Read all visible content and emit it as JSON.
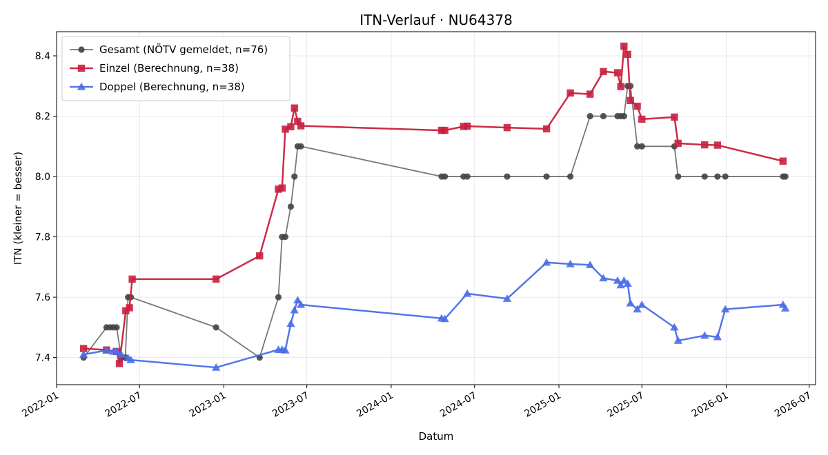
{
  "chart_data": {
    "type": "line",
    "title": "ITN-Verlauf · NU64378",
    "xlabel": "Datum",
    "ylabel": "ITN  (kleiner = besser)",
    "xlim": [
      "2022-01-01",
      "2026-07-15"
    ],
    "ylim": [
      7.31,
      8.48
    ],
    "x_ticks": [
      "2022-01",
      "2022-07",
      "2023-01",
      "2023-07",
      "2024-01",
      "2024-07",
      "2025-01",
      "2025-07",
      "2026-01",
      "2026-07"
    ],
    "y_ticks": [
      7.4,
      7.6,
      7.8,
      8.0,
      8.2,
      8.4
    ],
    "y_tick_labels": [
      "7.4",
      "7.6",
      "7.8",
      "8.0",
      "8.2",
      "8.4"
    ],
    "grid": true,
    "legend_position": "top-left",
    "series": [
      {
        "name": "Gesamt (NÖTV gemeldet, n=76)",
        "color": "#444444",
        "marker": "circle",
        "points": [
          [
            "2022-03-01",
            7.4
          ],
          [
            "2022-04-20",
            7.5
          ],
          [
            "2022-04-28",
            7.5
          ],
          [
            "2022-05-05",
            7.5
          ],
          [
            "2022-05-12",
            7.5
          ],
          [
            "2022-05-22",
            7.4
          ],
          [
            "2022-05-31",
            7.4
          ],
          [
            "2022-06-06",
            7.6
          ],
          [
            "2022-06-12",
            7.6
          ],
          [
            "2022-12-15",
            7.5
          ],
          [
            "2023-03-20",
            7.4
          ],
          [
            "2023-04-30",
            7.6
          ],
          [
            "2023-05-08",
            7.8
          ],
          [
            "2023-05-15",
            7.8
          ],
          [
            "2023-05-27",
            7.9
          ],
          [
            "2023-06-04",
            8.0
          ],
          [
            "2023-06-11",
            8.1
          ],
          [
            "2023-06-18",
            8.1
          ],
          [
            "2024-04-20",
            8.0
          ],
          [
            "2024-04-27",
            8.0
          ],
          [
            "2024-06-07",
            8.0
          ],
          [
            "2024-06-15",
            8.0
          ],
          [
            "2024-09-10",
            8.0
          ],
          [
            "2024-12-05",
            8.0
          ],
          [
            "2025-01-26",
            8.0
          ],
          [
            "2025-03-10",
            8.2
          ],
          [
            "2025-04-08",
            8.2
          ],
          [
            "2025-05-09",
            8.2
          ],
          [
            "2025-05-16",
            8.2
          ],
          [
            "2025-05-23",
            8.2
          ],
          [
            "2025-05-31",
            8.3
          ],
          [
            "2025-06-06",
            8.3
          ],
          [
            "2025-06-21",
            8.1
          ],
          [
            "2025-07-01",
            8.1
          ],
          [
            "2025-09-10",
            8.1
          ],
          [
            "2025-09-18",
            8.0
          ],
          [
            "2025-11-15",
            8.0
          ],
          [
            "2025-12-13",
            8.0
          ],
          [
            "2025-12-30",
            8.0
          ],
          [
            "2026-05-05",
            8.0
          ],
          [
            "2026-05-10",
            8.0
          ]
        ]
      },
      {
        "name": "Einzel (Berechnung, n=38)",
        "color": "#c8203f",
        "marker": "square",
        "points": [
          [
            "2022-03-01",
            7.43
          ],
          [
            "2022-04-20",
            7.425
          ],
          [
            "2022-05-12",
            7.42
          ],
          [
            "2022-05-18",
            7.38
          ],
          [
            "2022-06-01",
            7.555
          ],
          [
            "2022-06-09",
            7.565
          ],
          [
            "2022-06-15",
            7.66
          ],
          [
            "2022-12-15",
            7.66
          ],
          [
            "2023-03-20",
            7.737
          ],
          [
            "2023-04-30",
            7.958
          ],
          [
            "2023-05-08",
            7.962
          ],
          [
            "2023-05-15",
            8.157
          ],
          [
            "2023-05-27",
            8.165
          ],
          [
            "2023-06-04",
            8.227
          ],
          [
            "2023-06-11",
            8.183
          ],
          [
            "2023-06-18",
            8.168
          ],
          [
            "2024-04-20",
            8.153
          ],
          [
            "2024-04-27",
            8.153
          ],
          [
            "2024-06-07",
            8.166
          ],
          [
            "2024-06-15",
            8.167
          ],
          [
            "2024-09-10",
            8.162
          ],
          [
            "2024-12-05",
            8.158
          ],
          [
            "2025-01-26",
            8.277
          ],
          [
            "2025-03-10",
            8.273
          ],
          [
            "2025-04-08",
            8.348
          ],
          [
            "2025-05-09",
            8.344
          ],
          [
            "2025-05-16",
            8.298
          ],
          [
            "2025-05-23",
            8.432
          ],
          [
            "2025-05-31",
            8.405
          ],
          [
            "2025-06-06",
            8.252
          ],
          [
            "2025-06-21",
            8.233
          ],
          [
            "2025-07-01",
            8.19
          ],
          [
            "2025-09-10",
            8.197
          ],
          [
            "2025-09-18",
            8.11
          ],
          [
            "2025-11-15",
            8.105
          ],
          [
            "2025-12-13",
            8.104
          ],
          [
            "2026-05-05",
            8.051
          ]
        ]
      },
      {
        "name": "Doppel (Berechnung, n=38)",
        "color": "#4a6ee8",
        "marker": "triangle",
        "points": [
          [
            "2022-03-01",
            7.41
          ],
          [
            "2022-04-20",
            7.424
          ],
          [
            "2022-05-05",
            7.42
          ],
          [
            "2022-05-12",
            7.42
          ],
          [
            "2022-05-22",
            7.41
          ],
          [
            "2022-06-06",
            7.398
          ],
          [
            "2022-06-12",
            7.392
          ],
          [
            "2022-12-15",
            7.367
          ],
          [
            "2023-04-30",
            7.426
          ],
          [
            "2023-05-08",
            7.426
          ],
          [
            "2023-05-15",
            7.424
          ],
          [
            "2023-05-27",
            7.512
          ],
          [
            "2023-06-04",
            7.557
          ],
          [
            "2023-06-11",
            7.59
          ],
          [
            "2023-06-18",
            7.575
          ],
          [
            "2024-04-20",
            7.53
          ],
          [
            "2024-04-27",
            7.528
          ],
          [
            "2024-06-15",
            7.612
          ],
          [
            "2024-09-10",
            7.595
          ],
          [
            "2024-12-05",
            7.715
          ],
          [
            "2025-01-26",
            7.71
          ],
          [
            "2025-03-10",
            7.707
          ],
          [
            "2025-04-08",
            7.663
          ],
          [
            "2025-05-09",
            7.655
          ],
          [
            "2025-05-16",
            7.64
          ],
          [
            "2025-05-23",
            7.655
          ],
          [
            "2025-05-31",
            7.645
          ],
          [
            "2025-06-06",
            7.58
          ],
          [
            "2025-06-21",
            7.56
          ],
          [
            "2025-07-01",
            7.575
          ],
          [
            "2025-09-10",
            7.5
          ],
          [
            "2025-09-18",
            7.456
          ],
          [
            "2025-11-15",
            7.473
          ],
          [
            "2025-12-13",
            7.468
          ],
          [
            "2025-12-30",
            7.56
          ],
          [
            "2026-05-05",
            7.575
          ],
          [
            "2026-05-10",
            7.563
          ]
        ]
      }
    ]
  }
}
